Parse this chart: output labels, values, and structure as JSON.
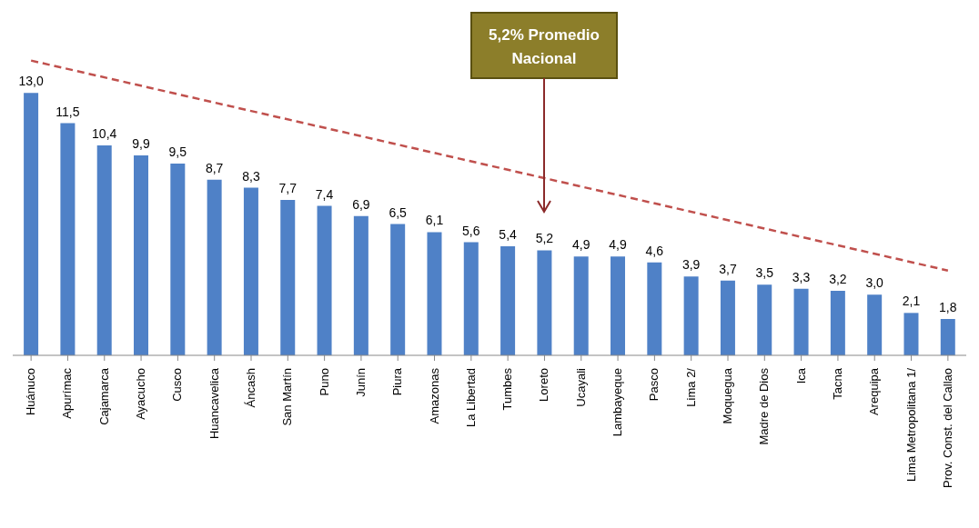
{
  "chart_data": {
    "type": "bar",
    "categories": [
      "Huánuco",
      "Apurímac",
      "Cajamarca",
      "Ayacucho",
      "Cusco",
      "Huancavelica",
      "Áncash",
      "San Martín",
      "Puno",
      "Junín",
      "Piura",
      "Amazonas",
      "La Libertad",
      "Tumbes",
      "Loreto",
      "Ucayali",
      "Lambayeque",
      "Pasco",
      "Lima 2/",
      "Moquegua",
      "Madre de Dios",
      "Ica",
      "Tacna",
      "Arequipa",
      "Lima Metropolitana 1/",
      "Prov. Const. del Callao"
    ],
    "series": [
      {
        "color": "#4f81c7",
        "values": [
          13.0,
          11.5,
          10.4,
          9.9,
          9.5,
          8.7,
          8.3,
          7.7,
          7.4,
          6.9,
          6.5,
          6.1,
          5.6,
          5.4,
          5.2,
          4.9,
          4.9,
          4.6,
          3.9,
          3.7,
          3.5,
          3.3,
          3.2,
          3.0,
          2.1,
          1.8
        ],
        "value_labels": [
          "13,0",
          "11,5",
          "10,4",
          "9,9",
          "9,5",
          "8,7",
          "8,3",
          "7,7",
          "7,4",
          "6,9",
          "6,5",
          "6,1",
          "5,6",
          "5,4",
          "5,2",
          "4,9",
          "4,9",
          "4,6",
          "3,9",
          "3,7",
          "3,5",
          "3,3",
          "3,2",
          "3,0",
          "2,1",
          "1,8"
        ]
      },
      {
        "type": "line",
        "color": "#c0504d",
        "line_style": "dashed",
        "values": [
          14.6,
          null,
          null,
          null,
          null,
          null,
          null,
          null,
          null,
          null,
          null,
          null,
          null,
          null,
          null,
          null,
          null,
          null,
          null,
          null,
          null,
          null,
          null,
          null,
          null,
          4.2
        ]
      }
    ],
    "annotations": [
      "5,2% Promedio Nacional"
    ],
    "grid": false,
    "legend": false
  }
}
